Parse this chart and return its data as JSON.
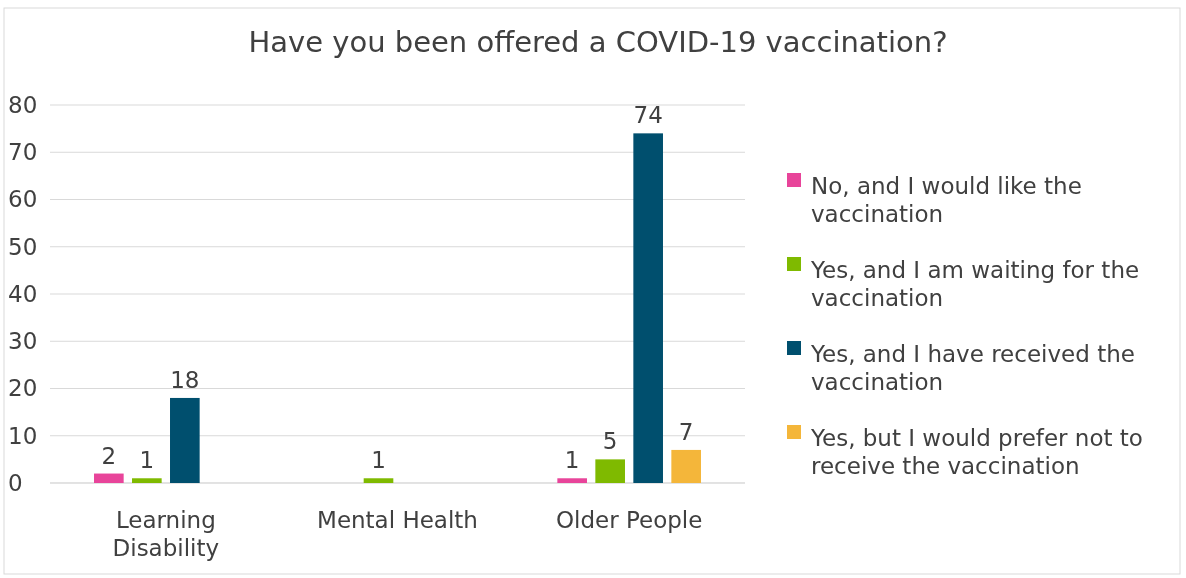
{
  "chart_data": {
    "type": "bar",
    "title": "Have you been offered a COVID-19 vaccination?",
    "categories": [
      "Learning Disability",
      "Mental Health",
      "Older People"
    ],
    "series": [
      {
        "name": "No, and I would like the vaccination",
        "color": "#e8449a",
        "values": [
          2,
          null,
          1
        ]
      },
      {
        "name": "Yes, and I am waiting for the vaccination",
        "color": "#7fba00",
        "values": [
          1,
          1,
          5
        ]
      },
      {
        "name": "Yes, and I have received the vaccination",
        "color": "#004f6e",
        "values": [
          18,
          null,
          74
        ]
      },
      {
        "name": "Yes, but I would prefer not to receive the vaccination",
        "color": "#f4b63a",
        "values": [
          null,
          null,
          7
        ]
      }
    ],
    "ylim": [
      0,
      80
    ],
    "yticks": [
      0,
      10,
      20,
      30,
      40,
      50,
      60,
      70,
      80
    ],
    "grid": "y",
    "legend": "right",
    "data_labels": true
  }
}
